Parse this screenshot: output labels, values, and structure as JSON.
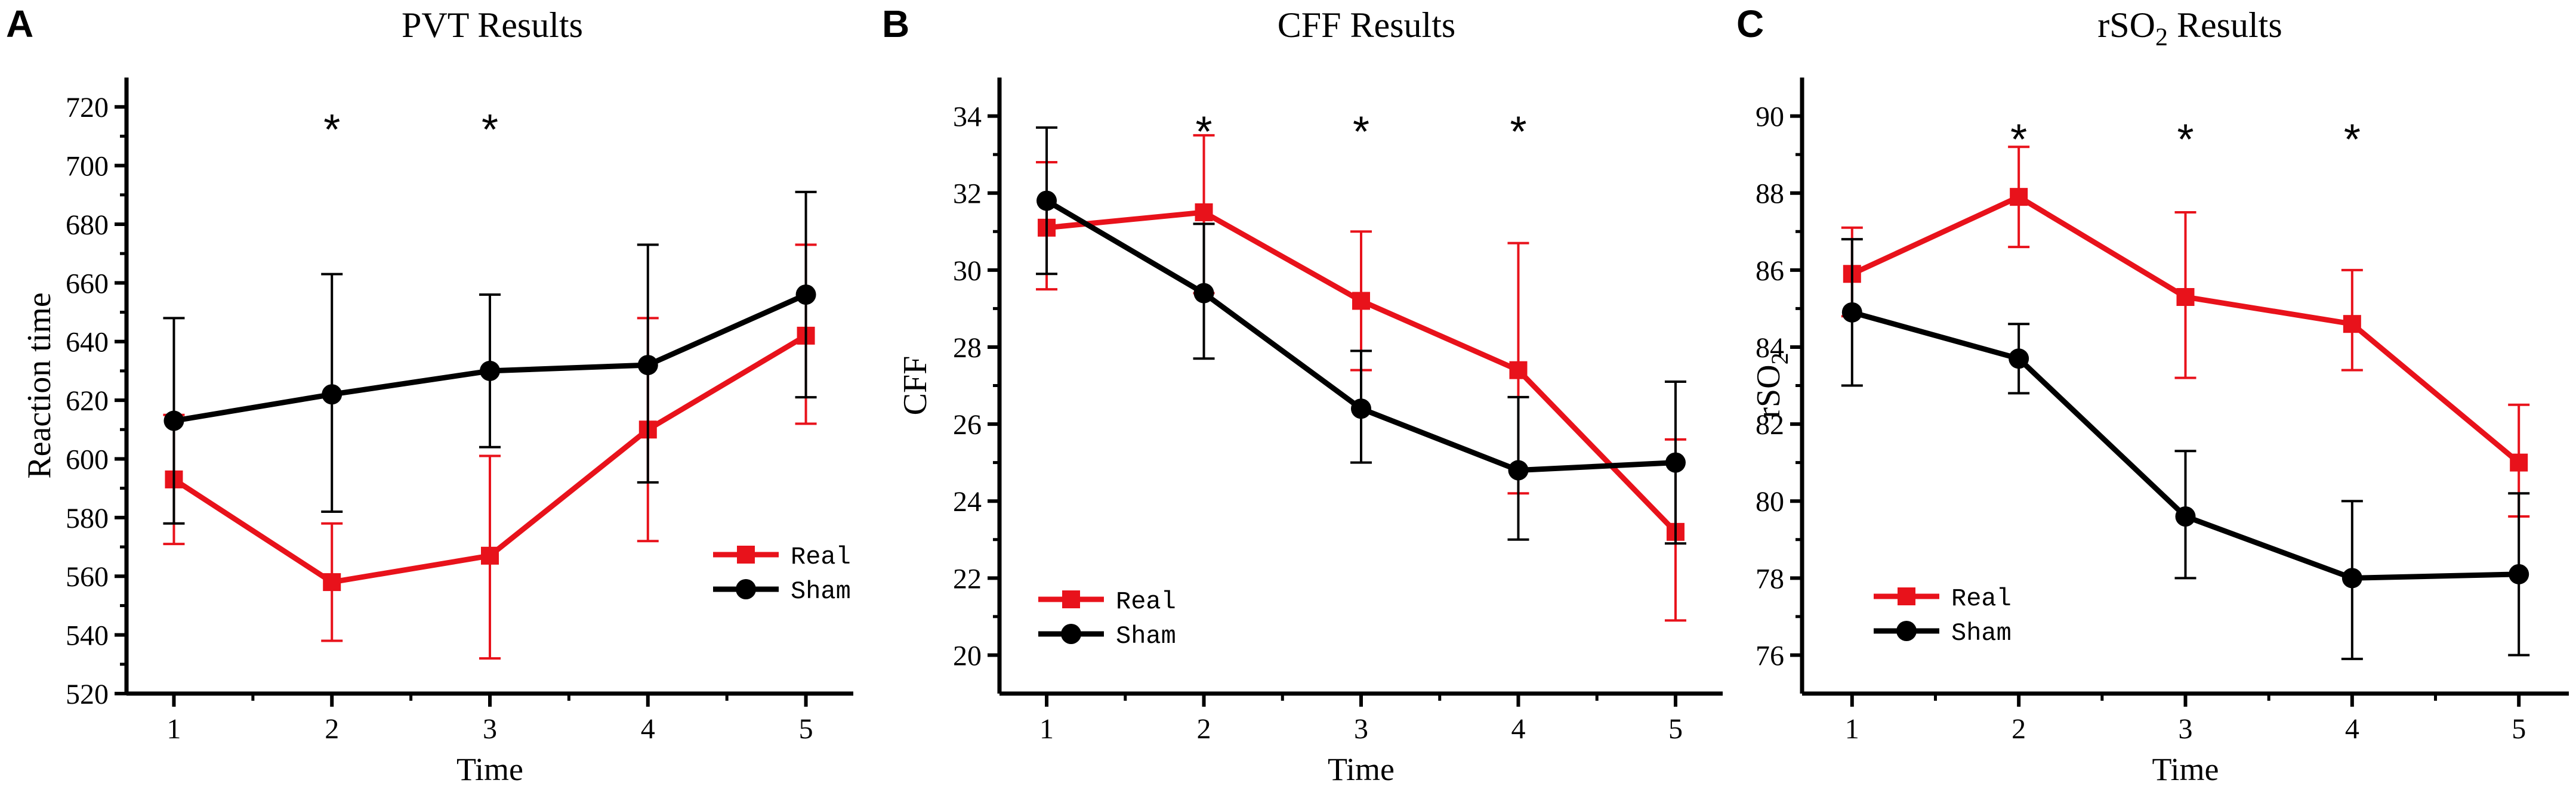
{
  "colors": {
    "real": "#e8121b",
    "sham": "#000000",
    "axis": "#000000"
  },
  "chart_data": [
    {
      "panel_label": "A",
      "type": "line",
      "title": "PVT Results",
      "xlabel": "Time",
      "ylabel": "Reaction time",
      "x": [
        1,
        2,
        3,
        4,
        5
      ],
      "xticks": [
        "1",
        "2",
        "3",
        "4",
        "5"
      ],
      "ylim": [
        520,
        730
      ],
      "yticks": [
        "520",
        "540",
        "560",
        "580",
        "600",
        "620",
        "640",
        "660",
        "680",
        "700",
        "720"
      ],
      "series": [
        {
          "name": "Real",
          "key": "real",
          "values": [
            593,
            558,
            567,
            610,
            642
          ],
          "err_low": [
            571,
            538,
            532,
            572,
            612
          ],
          "err_high": [
            615,
            578,
            601,
            648,
            673
          ]
        },
        {
          "name": "Sham",
          "key": "sham",
          "values": [
            613,
            622,
            630,
            632,
            656
          ],
          "err_low": [
            578,
            582,
            604,
            592,
            621
          ],
          "err_high": [
            648,
            663,
            656,
            673,
            691
          ]
        }
      ],
      "significance": {
        "x": [
          2,
          3
        ],
        "y": 715,
        "mark": "*"
      },
      "legend": {
        "position": "bottom-right",
        "entries": [
          "Real",
          "Sham"
        ]
      }
    },
    {
      "panel_label": "B",
      "type": "line",
      "title": "CFF Results",
      "xlabel": "Time",
      "ylabel": "CFF",
      "x": [
        1,
        2,
        3,
        4,
        5
      ],
      "xticks": [
        "1",
        "2",
        "3",
        "4",
        "5"
      ],
      "ylim": [
        19,
        35
      ],
      "yticks": [
        "20",
        "22",
        "24",
        "26",
        "28",
        "30",
        "32",
        "34"
      ],
      "series": [
        {
          "name": "Real",
          "key": "real",
          "values": [
            31.1,
            31.5,
            29.2,
            27.4,
            23.2
          ],
          "err_low": [
            29.5,
            29.4,
            27.4,
            24.2,
            20.9
          ],
          "err_high": [
            32.8,
            33.5,
            31.0,
            30.7,
            25.6
          ]
        },
        {
          "name": "Sham",
          "key": "sham",
          "values": [
            31.8,
            29.4,
            26.4,
            24.8,
            25.0
          ],
          "err_low": [
            29.9,
            27.7,
            25.0,
            23.0,
            22.9
          ],
          "err_high": [
            33.7,
            31.2,
            27.9,
            26.7,
            27.1
          ]
        }
      ],
      "significance": {
        "x": [
          2,
          3,
          4
        ],
        "y": 33.8,
        "mark": "*"
      },
      "legend": {
        "position": "bottom-left",
        "entries": [
          "Real",
          "Sham"
        ]
      }
    },
    {
      "panel_label": "C",
      "type": "line",
      "title": "rSO",
      "title_sub": "2",
      "title_suffix": " Results",
      "xlabel": "Time",
      "ylabel": "rSO",
      "ylabel_sub": "2",
      "x": [
        1,
        2,
        3,
        4,
        5
      ],
      "xticks": [
        "1",
        "2",
        "3",
        "4",
        "5"
      ],
      "ylim": [
        75,
        91
      ],
      "yticks": [
        "76",
        "78",
        "80",
        "82",
        "84",
        "86",
        "88",
        "90"
      ],
      "series": [
        {
          "name": "Real",
          "key": "real",
          "values": [
            85.9,
            87.9,
            85.3,
            84.6,
            81.0
          ],
          "err_low": [
            84.8,
            86.6,
            83.2,
            83.4,
            79.6
          ],
          "err_high": [
            87.1,
            89.2,
            87.5,
            86.0,
            82.5
          ]
        },
        {
          "name": "Sham",
          "key": "sham",
          "values": [
            84.9,
            83.7,
            79.6,
            78.0,
            78.1
          ],
          "err_low": [
            83.0,
            82.8,
            78.0,
            75.9,
            76.0
          ],
          "err_high": [
            86.8,
            84.6,
            81.3,
            80.0,
            80.2
          ]
        }
      ],
      "significance": {
        "x": [
          2,
          3,
          4
        ],
        "y": 89.6,
        "mark": "*"
      },
      "legend": {
        "position": "bottom-left",
        "entries": [
          "Real",
          "Sham"
        ]
      }
    }
  ]
}
